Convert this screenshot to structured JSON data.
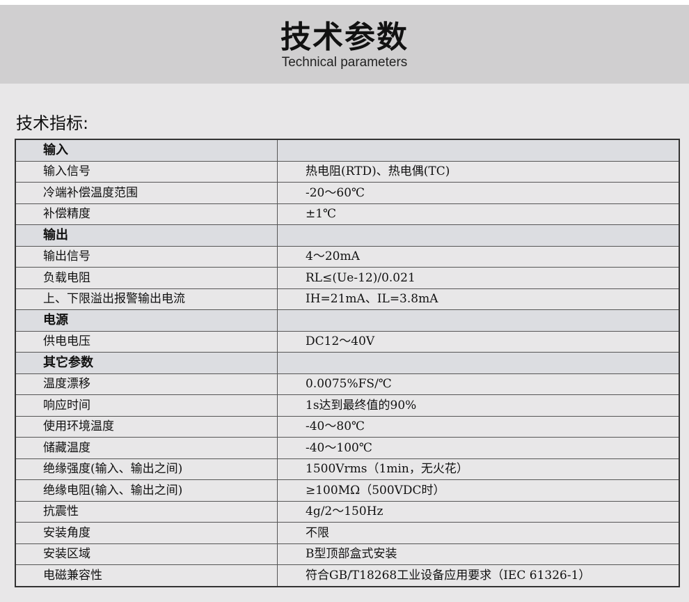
{
  "header": {
    "title": "技术参数",
    "subtitle": "Technical parameters"
  },
  "section_title": "技术指标:",
  "rows": [
    {
      "k": "输入",
      "v": "",
      "group": true
    },
    {
      "k": "输入信号",
      "v": "热电阻(RTD)、热电偶(TC)"
    },
    {
      "k": "冷端补偿温度范围",
      "v": "-20～60℃"
    },
    {
      "k": "补偿精度",
      "v": "±1℃"
    },
    {
      "k": "输出",
      "v": "",
      "group": true
    },
    {
      "k": "输出信号",
      "v": "4～20mA"
    },
    {
      "k": "负载电阻",
      "v": "RL≤(Ue-12)/0.021"
    },
    {
      "k": "上、下限溢出报警输出电流",
      "v": "IH=21mA、IL=3.8mA"
    },
    {
      "k": "电源",
      "v": "",
      "group": true
    },
    {
      "k": "供电电压",
      "v": "DC12～40V"
    },
    {
      "k": "其它参数",
      "v": "",
      "group": true
    },
    {
      "k": "温度漂移",
      "v": "0.0075%FS/℃"
    },
    {
      "k": "响应时间",
      "v": "1s达到最终值的90%"
    },
    {
      "k": "使用环境温度",
      "v": "-40～80℃"
    },
    {
      "k": "储藏温度",
      "v": "-40～100℃"
    },
    {
      "k": "绝缘强度(输入、输出之间)",
      "v": "1500Vrms（1min，无火花）"
    },
    {
      "k": "绝缘电阻(输入、输出之间)",
      "v": "≥100MΩ（500VDC时）"
    },
    {
      "k": "抗震性",
      "v": "4g/2～150Hz"
    },
    {
      "k": "安装角度",
      "v": "不限"
    },
    {
      "k": "安装区域",
      "v": "B型顶部盒式安装"
    },
    {
      "k": "电磁兼容性",
      "v": "符合GB/T18268工业设备应用要求（IEC 61326-1）"
    }
  ]
}
